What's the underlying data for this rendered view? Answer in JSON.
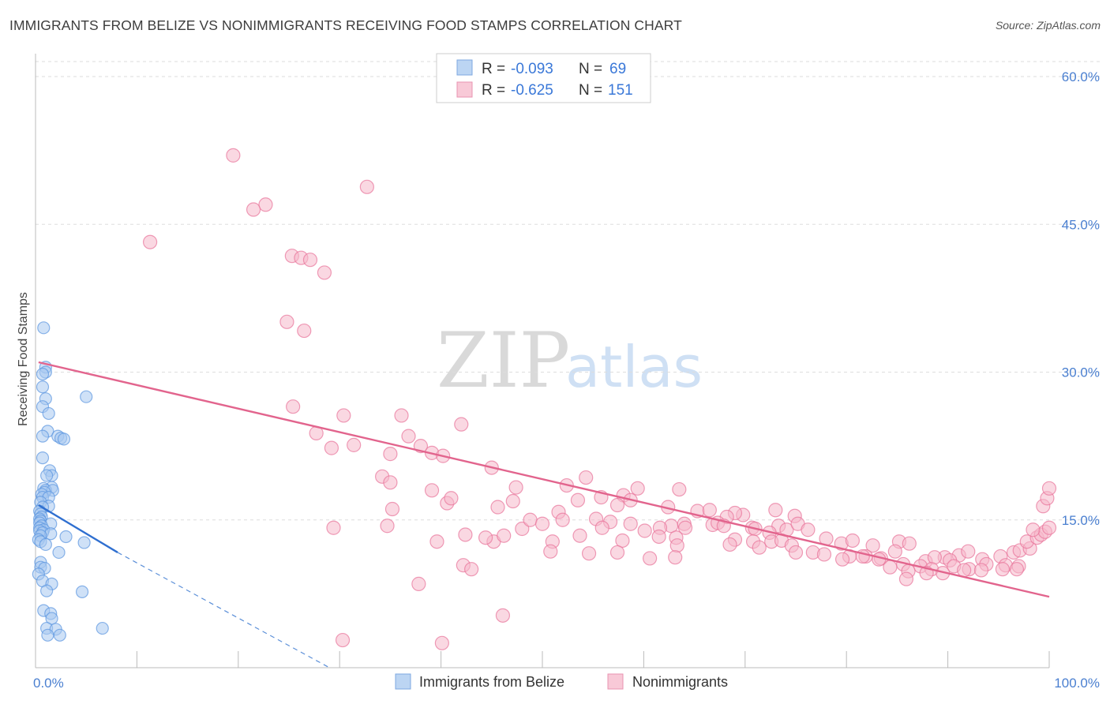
{
  "title": "IMMIGRANTS FROM BELIZE VS NONIMMIGRANTS RECEIVING FOOD STAMPS CORRELATION CHART",
  "source": "Source: ZipAtlas.com",
  "watermark": {
    "zip": "ZIP",
    "atlas": "atlas"
  },
  "legend": {
    "rows": [
      {
        "r_label": "R =",
        "r_value": "-0.093",
        "n_label": "N =",
        "n_value": "69",
        "color": "#a8c8f0"
      },
      {
        "r_label": "R =",
        "r_value": "-0.625",
        "n_label": "N =",
        "n_value": "151",
        "color": "#f5b8cb"
      }
    ]
  },
  "bottom_legend": [
    {
      "label": "Immigrants from Belize",
      "color": "#a8c8f0"
    },
    {
      "label": "Nonimmigrants",
      "color": "#f5b8cb"
    }
  ],
  "chart_data": {
    "type": "scatter",
    "title": "IMMIGRANTS FROM BELIZE VS NONIMMIGRANTS RECEIVING FOOD STAMPS CORRELATION CHART",
    "xlabel": "",
    "ylabel": "Receiving Food Stamps",
    "xlim": [
      0,
      100
    ],
    "ylim": [
      0,
      60
    ],
    "x_tick_labels": [
      {
        "value": 0,
        "label": "0.0%"
      },
      {
        "value": 100,
        "label": "100.0%"
      }
    ],
    "y_tick_labels": [
      {
        "value": 15,
        "label": "15.0%"
      },
      {
        "value": 30,
        "label": "30.0%"
      },
      {
        "value": 45,
        "label": "45.0%"
      },
      {
        "value": 60,
        "label": "60.0%"
      }
    ],
    "grid": true,
    "legend_position": "top-center",
    "series": [
      {
        "name": "Immigrants from Belize",
        "color": "#5b95e0",
        "fill": "#a8c8f0",
        "trend": {
          "x": [
            0.3,
            8.1
          ],
          "y": [
            16.5,
            11.7
          ],
          "extended_to": [
            29,
            0
          ],
          "style": "solid then dashed"
        },
        "points": [
          [
            0.8,
            34.5
          ],
          [
            1.0,
            30.5
          ],
          [
            1.0,
            30.0
          ],
          [
            0.7,
            29.8
          ],
          [
            0.7,
            28.5
          ],
          [
            5.0,
            27.5
          ],
          [
            1.0,
            27.3
          ],
          [
            0.7,
            26.5
          ],
          [
            1.3,
            25.8
          ],
          [
            1.2,
            24.0
          ],
          [
            2.2,
            23.5
          ],
          [
            0.7,
            23.5
          ],
          [
            2.5,
            23.3
          ],
          [
            2.8,
            23.2
          ],
          [
            0.7,
            21.3
          ],
          [
            1.4,
            20.0
          ],
          [
            1.6,
            19.5
          ],
          [
            1.1,
            19.5
          ],
          [
            1.6,
            18.3
          ],
          [
            0.8,
            18.2
          ],
          [
            1.0,
            18.0
          ],
          [
            1.7,
            18.0
          ],
          [
            0.9,
            17.8
          ],
          [
            0.6,
            17.6
          ],
          [
            0.7,
            17.3
          ],
          [
            1.3,
            17.3
          ],
          [
            0.5,
            16.8
          ],
          [
            1.3,
            16.4
          ],
          [
            0.7,
            16.3
          ],
          [
            0.4,
            15.9
          ],
          [
            0.5,
            15.6
          ],
          [
            0.6,
            15.3
          ],
          [
            0.4,
            15.1
          ],
          [
            0.5,
            14.9
          ],
          [
            0.4,
            14.7
          ],
          [
            1.5,
            14.6
          ],
          [
            0.6,
            14.4
          ],
          [
            0.4,
            14.2
          ],
          [
            0.8,
            14.0
          ],
          [
            0.4,
            13.9
          ],
          [
            0.7,
            13.7
          ],
          [
            1.5,
            13.6
          ],
          [
            0.5,
            13.4
          ],
          [
            3.0,
            13.3
          ],
          [
            0.3,
            13.0
          ],
          [
            0.5,
            12.8
          ],
          [
            4.8,
            12.7
          ],
          [
            1.0,
            12.5
          ],
          [
            2.3,
            11.7
          ],
          [
            0.5,
            10.7
          ],
          [
            0.5,
            10.2
          ],
          [
            0.9,
            10.1
          ],
          [
            0.3,
            9.5
          ],
          [
            0.7,
            8.8
          ],
          [
            1.6,
            8.5
          ],
          [
            1.1,
            7.8
          ],
          [
            4.6,
            7.7
          ],
          [
            0.8,
            5.8
          ],
          [
            1.5,
            5.5
          ],
          [
            1.6,
            5.0
          ],
          [
            1.1,
            4.0
          ],
          [
            2.0,
            3.9
          ],
          [
            6.6,
            4.0
          ],
          [
            1.2,
            3.3
          ],
          [
            2.4,
            3.3
          ]
        ]
      },
      {
        "name": "Nonimmigrants",
        "color": "#e8749a",
        "fill": "#f5b8cb",
        "trend": {
          "x": [
            0.3,
            100
          ],
          "y": [
            31.0,
            7.2
          ]
        },
        "points": [
          [
            19.5,
            52.0
          ],
          [
            32.7,
            48.8
          ],
          [
            22.7,
            47.0
          ],
          [
            21.5,
            46.5
          ],
          [
            11.3,
            43.2
          ],
          [
            25.3,
            41.8
          ],
          [
            26.2,
            41.6
          ],
          [
            27.1,
            41.4
          ],
          [
            28.5,
            40.1
          ],
          [
            24.8,
            35.1
          ],
          [
            26.5,
            34.2
          ],
          [
            25.4,
            26.5
          ],
          [
            30.4,
            25.6
          ],
          [
            36.1,
            25.6
          ],
          [
            42.0,
            24.7
          ],
          [
            27.7,
            23.8
          ],
          [
            36.8,
            23.5
          ],
          [
            38.0,
            22.5
          ],
          [
            29.2,
            22.3
          ],
          [
            31.4,
            22.6
          ],
          [
            35.0,
            21.7
          ],
          [
            39.1,
            21.8
          ],
          [
            40.2,
            21.5
          ],
          [
            45.0,
            20.3
          ],
          [
            34.2,
            19.4
          ],
          [
            35.0,
            18.8
          ],
          [
            54.3,
            19.3
          ],
          [
            47.4,
            18.3
          ],
          [
            39.1,
            18.0
          ],
          [
            52.4,
            18.5
          ],
          [
            63.5,
            18.1
          ],
          [
            59.4,
            18.2
          ],
          [
            47.1,
            16.9
          ],
          [
            40.6,
            16.7
          ],
          [
            41.0,
            17.2
          ],
          [
            55.8,
            17.3
          ],
          [
            58.0,
            17.5
          ],
          [
            53.5,
            17.0
          ],
          [
            45.6,
            16.3
          ],
          [
            57.4,
            16.5
          ],
          [
            58.7,
            17.0
          ],
          [
            35.2,
            16.1
          ],
          [
            51.6,
            15.8
          ],
          [
            62.4,
            16.3
          ],
          [
            65.3,
            15.9
          ],
          [
            66.5,
            16.0
          ],
          [
            69.8,
            15.5
          ],
          [
            69.0,
            15.7
          ],
          [
            68.2,
            15.3
          ],
          [
            73.0,
            16.0
          ],
          [
            74.9,
            15.4
          ],
          [
            58.7,
            14.6
          ],
          [
            52.0,
            15.0
          ],
          [
            55.3,
            15.1
          ],
          [
            56.7,
            14.8
          ],
          [
            48.0,
            14.1
          ],
          [
            48.8,
            15.0
          ],
          [
            50.0,
            14.6
          ],
          [
            55.9,
            14.2
          ],
          [
            62.7,
            14.4
          ],
          [
            64.0,
            14.6
          ],
          [
            66.8,
            14.5
          ],
          [
            67.3,
            14.7
          ],
          [
            70.7,
            14.2
          ],
          [
            73.3,
            14.4
          ],
          [
            74.1,
            14.0
          ],
          [
            75.2,
            14.6
          ],
          [
            72.4,
            13.7
          ],
          [
            60.1,
            13.9
          ],
          [
            61.6,
            14.2
          ],
          [
            64.1,
            14.2
          ],
          [
            67.9,
            14.4
          ],
          [
            71.0,
            14.1
          ],
          [
            76.2,
            14.0
          ],
          [
            34.7,
            14.4
          ],
          [
            29.4,
            14.2
          ],
          [
            39.6,
            12.8
          ],
          [
            45.2,
            12.8
          ],
          [
            44.4,
            13.2
          ],
          [
            46.2,
            13.4
          ],
          [
            42.4,
            13.5
          ],
          [
            51.0,
            12.8
          ],
          [
            53.7,
            13.4
          ],
          [
            57.9,
            12.9
          ],
          [
            61.5,
            13.3
          ],
          [
            63.2,
            13.2
          ],
          [
            69.0,
            13.0
          ],
          [
            70.8,
            12.8
          ],
          [
            72.6,
            12.8
          ],
          [
            73.6,
            12.9
          ],
          [
            78.0,
            13.1
          ],
          [
            79.5,
            12.6
          ],
          [
            80.6,
            12.9
          ],
          [
            82.6,
            12.4
          ],
          [
            85.2,
            12.8
          ],
          [
            86.2,
            12.6
          ],
          [
            63.3,
            12.4
          ],
          [
            68.5,
            12.5
          ],
          [
            71.4,
            12.2
          ],
          [
            74.6,
            12.4
          ],
          [
            76.7,
            11.7
          ],
          [
            80.3,
            11.3
          ],
          [
            81.9,
            11.3
          ],
          [
            83.4,
            11.1
          ],
          [
            87.8,
            10.8
          ],
          [
            89.7,
            11.2
          ],
          [
            91.1,
            11.4
          ],
          [
            92.0,
            11.8
          ],
          [
            93.4,
            11.0
          ],
          [
            95.2,
            11.3
          ],
          [
            96.5,
            11.7
          ],
          [
            97.1,
            11.9
          ],
          [
            98.1,
            12.1
          ],
          [
            84.8,
            11.8
          ],
          [
            88.7,
            11.2
          ],
          [
            90.2,
            10.9
          ],
          [
            75.0,
            11.7
          ],
          [
            77.8,
            11.5
          ],
          [
            79.6,
            11.0
          ],
          [
            81.6,
            11.3
          ],
          [
            83.2,
            11.0
          ],
          [
            85.6,
            10.5
          ],
          [
            87.3,
            10.3
          ],
          [
            88.4,
            10.0
          ],
          [
            90.6,
            10.3
          ],
          [
            92.1,
            10.0
          ],
          [
            93.8,
            10.5
          ],
          [
            95.7,
            10.4
          ],
          [
            97.0,
            10.3
          ],
          [
            84.3,
            10.2
          ],
          [
            86.1,
            9.8
          ],
          [
            87.9,
            9.6
          ],
          [
            89.5,
            9.6
          ],
          [
            91.6,
            9.9
          ],
          [
            93.3,
            9.9
          ],
          [
            95.4,
            10.0
          ],
          [
            96.8,
            10.0
          ],
          [
            85.9,
            9.0
          ],
          [
            97.8,
            12.8
          ],
          [
            98.8,
            13.2
          ],
          [
            99.2,
            13.5
          ],
          [
            99.6,
            13.8
          ],
          [
            100.0,
            14.2
          ],
          [
            98.4,
            14.0
          ],
          [
            99.4,
            16.4
          ],
          [
            99.8,
            17.2
          ],
          [
            100.0,
            18.2
          ],
          [
            54.6,
            11.6
          ],
          [
            50.8,
            11.8
          ],
          [
            57.4,
            11.7
          ],
          [
            60.6,
            11.1
          ],
          [
            63.1,
            11.2
          ],
          [
            42.2,
            10.4
          ],
          [
            43.0,
            10.0
          ],
          [
            37.8,
            8.5
          ],
          [
            46.1,
            5.3
          ],
          [
            30.3,
            2.8
          ],
          [
            40.1,
            2.5
          ]
        ]
      }
    ]
  }
}
